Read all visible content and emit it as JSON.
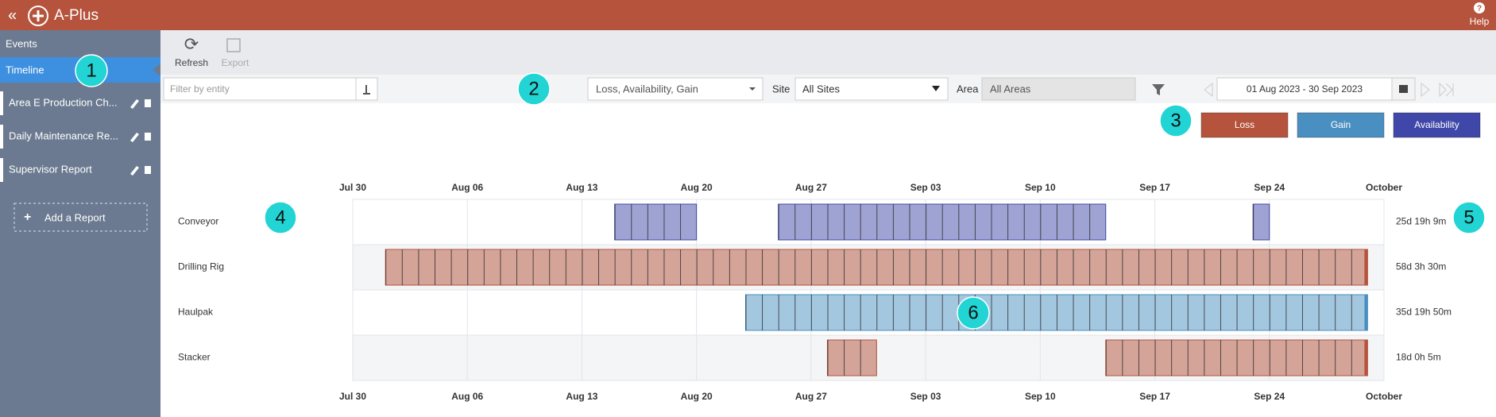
{
  "app": {
    "title": "A-Plus",
    "help": "Help"
  },
  "sidebar": {
    "nav": [
      "Events",
      "Timeline"
    ],
    "reports": [
      "Area E Production Ch...",
      "Daily Maintenance Re...",
      "Supervisor Report"
    ],
    "add_report": "Add a Report"
  },
  "toolbar": {
    "refresh": "Refresh",
    "export": "Export"
  },
  "filters": {
    "entity_placeholder": "Filter by entity",
    "measures": "Loss, Availability, Gain",
    "site_label": "Site",
    "site": "All Sites",
    "area_label": "Area",
    "area": "All Areas",
    "date_range": "01 Aug 2023 - 30 Sep 2023"
  },
  "chart_data": {
    "type": "timeline",
    "series": [
      {
        "name": "Loss",
        "color": "#b5533c"
      },
      {
        "name": "Gain",
        "color": "#4a8fc1"
      },
      {
        "name": "Availability",
        "color": "#3f47a8"
      }
    ],
    "xlim": [
      "2023-07-30",
      "2023-10-01"
    ],
    "xticks": [
      {
        "value": "2023-07-30",
        "label": "Jul 30"
      },
      {
        "value": "2023-08-06",
        "label": "Aug 06"
      },
      {
        "value": "2023-08-13",
        "label": "Aug 13"
      },
      {
        "value": "2023-08-20",
        "label": "Aug 20"
      },
      {
        "value": "2023-08-27",
        "label": "Aug 27"
      },
      {
        "value": "2023-09-03",
        "label": "Sep 03"
      },
      {
        "value": "2023-09-10",
        "label": "Sep 10"
      },
      {
        "value": "2023-09-17",
        "label": "Sep 17"
      },
      {
        "value": "2023-09-24",
        "label": "Sep 24"
      },
      {
        "value": "2023-10-01",
        "label": "October"
      }
    ],
    "rows": [
      {
        "name": "Conveyor",
        "total": "25d 19h 9m",
        "segments": [
          {
            "series": "Availability",
            "start": "2023-08-15",
            "end": "2023-08-20"
          },
          {
            "series": "Availability",
            "start": "2023-08-25",
            "end": "2023-09-14"
          },
          {
            "series": "Availability",
            "start": "2023-09-23",
            "end": "2023-09-24"
          }
        ]
      },
      {
        "name": "Drilling Rig",
        "total": "58d 3h 30m",
        "segments": [
          {
            "series": "Loss",
            "start": "2023-08-01",
            "end": "2023-09-30"
          }
        ]
      },
      {
        "name": "Haulpak",
        "total": "35d 19h 50m",
        "segments": [
          {
            "series": "Gain",
            "start": "2023-08-23",
            "end": "2023-09-30"
          }
        ]
      },
      {
        "name": "Stacker",
        "total": "18d 0h 5m",
        "segments": [
          {
            "series": "Loss",
            "start": "2023-08-28",
            "end": "2023-08-31"
          },
          {
            "series": "Loss",
            "start": "2023-09-14",
            "end": "2023-09-30"
          }
        ]
      }
    ]
  },
  "callouts": [
    "1",
    "2",
    "3",
    "4",
    "5",
    "6"
  ]
}
